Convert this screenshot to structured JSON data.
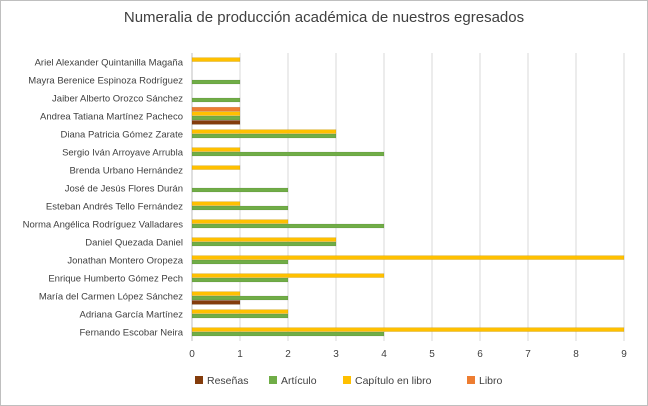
{
  "chart_data": {
    "type": "bar",
    "orientation": "horizontal",
    "title": "Numeralia de producción académica de nuestros egresados",
    "xlim": [
      0,
      9
    ],
    "xticks": [
      0,
      1,
      2,
      3,
      4,
      5,
      6,
      7,
      8,
      9
    ],
    "grid": true,
    "legend_position": "bottom",
    "categories": [
      "Ariel Alexander Quintanilla Magaña",
      "Mayra Berenice Espinoza Rodríguez",
      "Jaiber Alberto Orozco Sánchez",
      "Andrea Tatiana Martínez Pacheco",
      "Diana Patricia Gómez Zarate",
      "Sergio Iván Arroyave Arrubla",
      "Brenda Urbano Hernández",
      "José de Jesús Flores Durán",
      "Esteban Andrés Tello Fernández",
      "Norma Angélica Rodríguez Valladares",
      "Daniel Quezada Daniel",
      "Jonathan Montero Oropeza",
      "Enrique Humberto Gómez Pech",
      "María del  Carmen López Sánchez",
      "Adriana García Martínez",
      "Fernando Escobar Neira"
    ],
    "series": [
      {
        "name": "Reseñas",
        "color": "#843c0c",
        "values": [
          0,
          0,
          0,
          1,
          0,
          0,
          0,
          0,
          0,
          0,
          0,
          0,
          0,
          1,
          0,
          0
        ]
      },
      {
        "name": "Artículo",
        "color": "#70ad47",
        "values": [
          0,
          1,
          1,
          1,
          3,
          4,
          0,
          2,
          2,
          4,
          3,
          2,
          2,
          2,
          2,
          4
        ]
      },
      {
        "name": "Capítulo en libro",
        "color": "#ffc000",
        "values": [
          1,
          0,
          0,
          1,
          3,
          1,
          1,
          0,
          1,
          2,
          3,
          9,
          4,
          1,
          2,
          9
        ]
      },
      {
        "name": "Libro",
        "color": "#ed7d31",
        "values": [
          0,
          0,
          0,
          1,
          0,
          0,
          0,
          0,
          0,
          0,
          0,
          0,
          0,
          0,
          0,
          0
        ]
      }
    ]
  }
}
